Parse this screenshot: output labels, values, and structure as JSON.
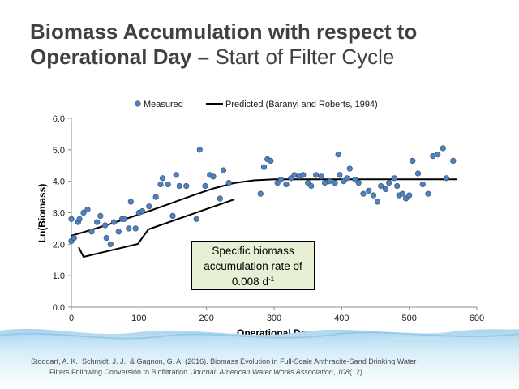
{
  "slide": {
    "title_bold": "Biomass Accumulation with respect to Operational Day",
    "title_dash": " – ",
    "title_rest": "Start of Filter Cycle",
    "citation": {
      "line1": "Stoddart, A. K., Schmidt, J. J., & Gagnon, G. A. (2016). Biomass Evolution in Full-Scale Anthracite-Sand Drinking Water",
      "line2_pre": "Filters Following Conversion to Biofiltration. ",
      "journal": "Journal: American Water Works Association",
      "sep": ", ",
      "volume": "108",
      "issue": "(12)."
    },
    "annotation": {
      "line1": "Specific biomass",
      "line2": "accumulation rate of",
      "line3_value": "0.008 d",
      "line3_exponent": "-1"
    }
  },
  "colors": {
    "marker_fill": "#4f81bd",
    "marker_edge": "#2c4d75",
    "annotation_fill": "#e7efd4",
    "title_text": "#404040"
  },
  "chart_data": {
    "type": "scatter",
    "xlabel": "Operational Day",
    "ylabel": "Ln(Biomass)",
    "xlim": [
      0,
      600
    ],
    "ylim": [
      0.0,
      6.0
    ],
    "x_ticks": [
      0,
      100,
      200,
      300,
      400,
      500,
      600
    ],
    "y_ticks": [
      "0.0",
      "1.0",
      "2.0",
      "3.0",
      "4.0",
      "5.0",
      "6.0"
    ],
    "grid": false,
    "legend": {
      "placement": "top"
    },
    "series": [
      {
        "name": "Measured",
        "kind": "points",
        "points": [
          [
            0,
            2.8
          ],
          [
            0,
            2.1
          ],
          [
            4,
            2.2
          ],
          [
            10,
            2.7
          ],
          [
            12,
            2.8
          ],
          [
            18,
            3.0
          ],
          [
            24,
            3.1
          ],
          [
            30,
            2.4
          ],
          [
            38,
            2.7
          ],
          [
            43,
            2.9
          ],
          [
            50,
            2.6
          ],
          [
            52,
            2.2
          ],
          [
            58,
            2.0
          ],
          [
            63,
            2.7
          ],
          [
            70,
            2.4
          ],
          [
            75,
            2.8
          ],
          [
            78,
            2.8
          ],
          [
            85,
            2.5
          ],
          [
            88,
            3.35
          ],
          [
            95,
            2.5
          ],
          [
            100,
            3.0
          ],
          [
            105,
            3.05
          ],
          [
            115,
            3.2
          ],
          [
            125,
            3.5
          ],
          [
            132,
            3.9
          ],
          [
            135,
            4.1
          ],
          [
            143,
            3.9
          ],
          [
            150,
            2.9
          ],
          [
            155,
            4.2
          ],
          [
            160,
            3.85
          ],
          [
            170,
            3.85
          ],
          [
            185,
            2.8
          ],
          [
            190,
            5.0
          ],
          [
            198,
            3.85
          ],
          [
            205,
            4.2
          ],
          [
            210,
            4.15
          ],
          [
            220,
            3.45
          ],
          [
            225,
            4.35
          ],
          [
            233,
            3.95
          ],
          [
            280,
            3.6
          ],
          [
            285,
            4.45
          ],
          [
            290,
            4.7
          ],
          [
            295,
            4.65
          ],
          [
            305,
            3.95
          ],
          [
            310,
            4.05
          ],
          [
            318,
            3.9
          ],
          [
            325,
            4.1
          ],
          [
            330,
            4.2
          ],
          [
            337,
            4.15
          ],
          [
            343,
            4.2
          ],
          [
            350,
            3.95
          ],
          [
            355,
            3.85
          ],
          [
            362,
            4.2
          ],
          [
            370,
            4.15
          ],
          [
            375,
            3.95
          ],
          [
            382,
            4.0
          ],
          [
            390,
            3.95
          ],
          [
            395,
            4.85
          ],
          [
            397,
            4.2
          ],
          [
            403,
            4.0
          ],
          [
            408,
            4.1
          ],
          [
            412,
            4.4
          ],
          [
            420,
            4.05
          ],
          [
            425,
            3.95
          ],
          [
            432,
            3.6
          ],
          [
            440,
            3.7
          ],
          [
            447,
            3.55
          ],
          [
            453,
            3.35
          ],
          [
            458,
            3.85
          ],
          [
            465,
            3.75
          ],
          [
            470,
            3.95
          ],
          [
            478,
            4.1
          ],
          [
            482,
            3.85
          ],
          [
            485,
            3.55
          ],
          [
            490,
            3.6
          ],
          [
            495,
            3.45
          ],
          [
            500,
            3.55
          ],
          [
            505,
            4.65
          ],
          [
            513,
            4.25
          ],
          [
            520,
            3.9
          ],
          [
            528,
            3.6
          ],
          [
            535,
            4.8
          ],
          [
            542,
            4.85
          ],
          [
            550,
            5.05
          ],
          [
            555,
            4.1
          ],
          [
            565,
            4.65
          ]
        ]
      },
      {
        "name": "Predicted (Baranyi and Roberts, 1994)",
        "kind": "line",
        "points": [
          [
            0,
            2.27
          ],
          [
            30,
            2.46
          ],
          [
            60,
            2.66
          ],
          [
            90,
            2.87
          ],
          [
            120,
            3.09
          ],
          [
            150,
            3.32
          ],
          [
            180,
            3.55
          ],
          [
            210,
            3.77
          ],
          [
            240,
            3.94
          ],
          [
            270,
            4.03
          ],
          [
            300,
            4.06
          ],
          [
            350,
            4.06
          ],
          [
            400,
            4.06
          ],
          [
            450,
            4.06
          ],
          [
            500,
            4.06
          ],
          [
            550,
            4.06
          ],
          [
            570,
            4.06
          ]
        ]
      }
    ]
  }
}
